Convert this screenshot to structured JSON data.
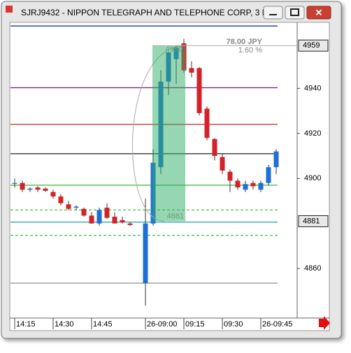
{
  "window": {
    "title": "SJRJ9432 - NIPPON TELEGRAPH AND TELEPHONE CORP, 3 Min"
  },
  "chart_data": {
    "type": "candlestick",
    "categories": [
      "14:15",
      null,
      null,
      null,
      null,
      "14:30",
      null,
      null,
      null,
      null,
      "14:45",
      null,
      null,
      null,
      null,
      null,
      null,
      "26-09:00",
      null,
      null,
      null,
      null,
      "09:15",
      null,
      null,
      null,
      null,
      "09:30",
      null,
      null,
      null,
      null,
      "26-09:45",
      null,
      null
    ],
    "open": [
      4898,
      4898,
      4895,
      4896,
      4895.5,
      4894,
      4892,
      4888.5,
      4887,
      4886.5,
      4883.5,
      4880,
      4887,
      4883,
      4881.5,
      4880,
      null,
      4853.5,
      4880,
      4905,
      4943,
      4953,
      4960,
      4949,
      4949,
      4931,
      4917.5,
      4909.5,
      4903,
      4899,
      4895,
      4898,
      4895,
      4898,
      4905
    ],
    "high": [
      4900,
      4899,
      4896,
      4896.5,
      4896,
      4895,
      4893,
      4890,
      4888,
      4887,
      4885,
      4887,
      4889,
      4885,
      4883,
      4880.5,
      null,
      4891,
      4913,
      4948,
      4956,
      4959,
      4962,
      4952,
      4949.5,
      4932,
      4918,
      4911,
      4904,
      4900,
      4899,
      4899,
      4899,
      4906,
      4913
    ],
    "low": [
      4896,
      4894,
      4894,
      4894,
      4894,
      4891,
      4888,
      4886,
      4886,
      4883,
      4880,
      4879,
      4882,
      4880,
      4880,
      4879,
      null,
      4843.5,
      4879,
      4902,
      4937,
      4942,
      4947,
      4945,
      4928,
      4917,
      4908,
      4902,
      4894,
      4895,
      4894,
      4895,
      4894,
      4897,
      4902
    ],
    "close": [
      4898,
      4895,
      4895.5,
      4895,
      4894.5,
      4892,
      4889,
      4886.5,
      4887.5,
      4883.5,
      4880,
      4886,
      4882.5,
      4880,
      4880.5,
      4879.3,
      null,
      4880,
      4907,
      4943,
      4956,
      4958,
      4948,
      4947,
      4929,
      4918,
      4910,
      4903.5,
      4899,
      4896,
      4897.5,
      4896.5,
      4898,
      4905,
      4912
    ],
    "up_color": "#1f6fd6",
    "down_color": "#d42228",
    "levels": [
      {
        "value": 4967.7,
        "color": "#1a2fb8",
        "style": "solid"
      },
      {
        "value": 4940.3,
        "color": "#7a2a8a",
        "style": "solid"
      },
      {
        "value": 4924,
        "color": "#c83a3a",
        "style": "solid"
      },
      {
        "value": 4911,
        "color": "#222222",
        "style": "solid"
      },
      {
        "value": 4897,
        "color": "#44c044",
        "style": "solid"
      },
      {
        "value": 4886,
        "color": "#44c044",
        "style": "dashed"
      },
      {
        "value": 4880.6,
        "color": "#1aa0a8",
        "style": "solid"
      },
      {
        "value": 4874.7,
        "color": "#44c044",
        "style": "dashed"
      },
      {
        "value": 4853.5,
        "color": "#999999",
        "style": "solid"
      }
    ],
    "measure": {
      "from": 4881,
      "to": 4959,
      "change": "78.00 JPY",
      "percent": "1.60 %"
    },
    "ylim": [
      4838,
      4969
    ],
    "yticks": [
      4860,
      4900,
      4920,
      4940
    ]
  }
}
